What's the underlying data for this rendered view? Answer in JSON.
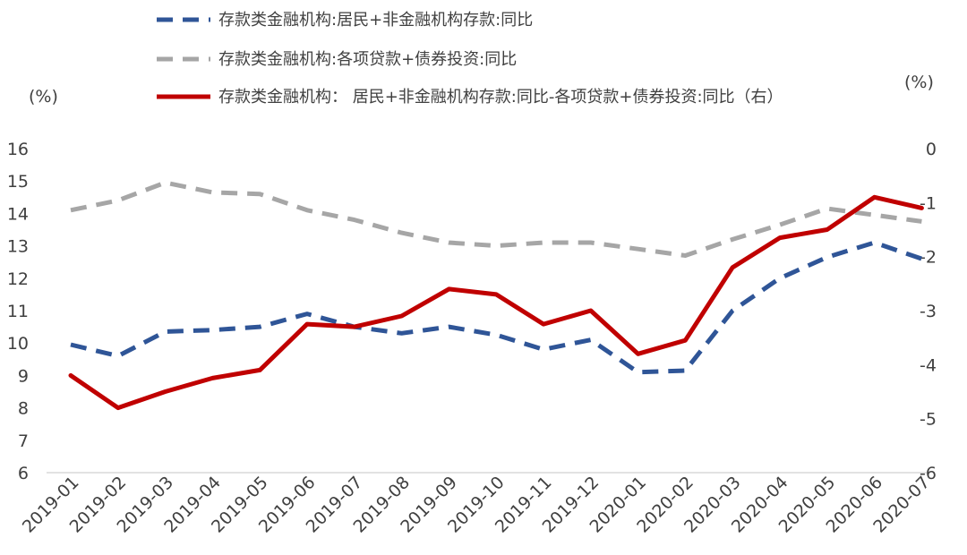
{
  "chart_data": {
    "type": "line",
    "categories": [
      "2019-01",
      "2019-02",
      "2019-03",
      "2019-04",
      "2019-05",
      "2019-06",
      "2019-07",
      "2019-08",
      "2019-09",
      "2019-10",
      "2019-11",
      "2019-12",
      "2020-01",
      "2020-02",
      "2020-03",
      "2020-04",
      "2020-05",
      "2020-06",
      "2020-07"
    ],
    "left_unit": "(%)",
    "right_unit": "(%)",
    "ylim_left": [
      6,
      16
    ],
    "ylim_right": [
      -6,
      0
    ],
    "yticks_left": [
      "16",
      "15",
      "14",
      "13",
      "12",
      "11",
      "10",
      "9",
      "8",
      "7",
      "6"
    ],
    "yticks_right": [
      "0",
      "-1",
      "-2",
      "-3",
      "-4",
      "-5",
      "-6"
    ],
    "legend_position": "top",
    "grid": false,
    "series": [
      {
        "name": "存款类金融机构:居民+非金融机构存款:同比",
        "axis": "left",
        "style": "dashed",
        "color": "#2F5597",
        "values": [
          9.95,
          9.6,
          10.35,
          10.4,
          10.5,
          10.9,
          10.5,
          10.3,
          10.5,
          10.25,
          9.8,
          10.1,
          9.1,
          9.15,
          11.0,
          12.0,
          12.65,
          13.1,
          12.6
        ]
      },
      {
        "name": "存款类金融机构:各项贷款+债券投资:同比",
        "axis": "left",
        "style": "dashed",
        "color": "#A6A6A6",
        "values": [
          14.1,
          14.4,
          14.95,
          14.65,
          14.6,
          14.1,
          13.8,
          13.4,
          13.1,
          13.0,
          13.1,
          13.1,
          12.9,
          12.7,
          13.2,
          13.65,
          14.15,
          13.95,
          13.75
        ]
      },
      {
        "name": "存款类金融机构： 居民+非金融机构存款:同比-各项贷款+债券投资:同比（右）",
        "axis": "right",
        "style": "solid",
        "color": "#C00000",
        "values": [
          -4.2,
          -4.8,
          -4.5,
          -4.25,
          -4.1,
          -3.25,
          -3.3,
          -3.1,
          -2.6,
          -2.7,
          -3.25,
          -3.0,
          -3.8,
          -3.55,
          -2.2,
          -1.65,
          -1.5,
          -0.9,
          -1.1
        ]
      }
    ]
  }
}
